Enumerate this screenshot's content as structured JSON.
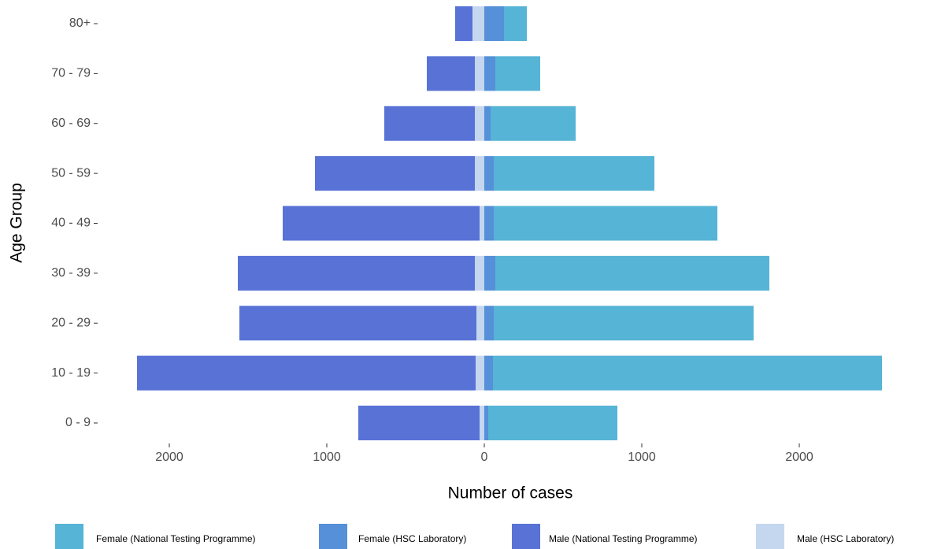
{
  "chart_data": {
    "type": "pyramid",
    "x_label": "Number of cases",
    "y_label": "Age Group",
    "categories": [
      "0 - 9",
      "10 - 19",
      "20 - 29",
      "30 - 39",
      "40 - 49",
      "50 - 59",
      "60 - 69",
      "70 - 79",
      "80+"
    ],
    "series": [
      {
        "name": "Female (National Testing Programme)",
        "color": "#56b4d6",
        "values": [
          820,
          2470,
          1650,
          1740,
          1420,
          1020,
          540,
          285,
          145
        ]
      },
      {
        "name": "Female (HSC Laboratory)",
        "color": "#5590d8",
        "values": [
          25,
          55,
          60,
          70,
          60,
          60,
          40,
          70,
          125
        ]
      },
      {
        "name": "Male (National Testing Programme)",
        "color": "#5872d6",
        "values": [
          -770,
          -2150,
          -1505,
          -1505,
          -1250,
          -1015,
          -575,
          -305,
          -110
        ]
      },
      {
        "name": "Male (HSC Laboratory)",
        "color": "#c5d6ef",
        "values": [
          -30,
          -55,
          -50,
          -60,
          -30,
          -60,
          -60,
          -60,
          -75
        ]
      }
    ],
    "xlim": [
      -2425,
      2725
    ],
    "xticks": [
      {
        "value": -2000,
        "label": "2000"
      },
      {
        "value": -1000,
        "label": "1000"
      },
      0,
      1000,
      2000
    ],
    "grid": false
  }
}
